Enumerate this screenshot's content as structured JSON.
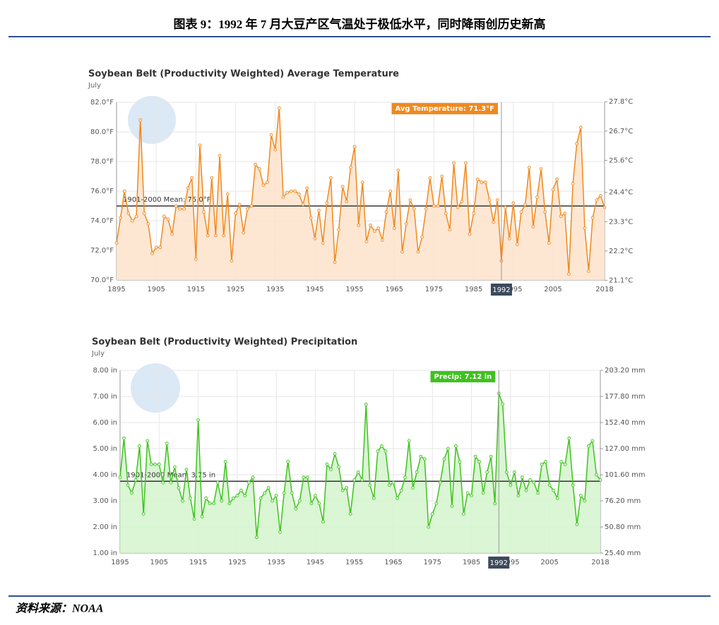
{
  "header": {
    "title": "图表 9：1992 年 7 月大豆产区气温处于极低水平，同时降雨创历史新高"
  },
  "footer": {
    "source": "资料来源：NOAA"
  },
  "chart_data": [
    {
      "type": "line",
      "title": "Soybean Belt (Productivity Weighted) Average Temperature",
      "subtitle": "July",
      "color": "#f0891e",
      "fill": "#fde3cb",
      "x": [
        1895,
        1896,
        1897,
        1898,
        1899,
        1900,
        1901,
        1902,
        1903,
        1904,
        1905,
        1906,
        1907,
        1908,
        1909,
        1910,
        1911,
        1912,
        1913,
        1914,
        1915,
        1916,
        1917,
        1918,
        1919,
        1920,
        1921,
        1922,
        1923,
        1924,
        1925,
        1926,
        1927,
        1928,
        1929,
        1930,
        1931,
        1932,
        1933,
        1934,
        1935,
        1936,
        1937,
        1938,
        1939,
        1940,
        1941,
        1942,
        1943,
        1944,
        1945,
        1946,
        1947,
        1948,
        1949,
        1950,
        1951,
        1952,
        1953,
        1954,
        1955,
        1956,
        1957,
        1958,
        1959,
        1960,
        1961,
        1962,
        1963,
        1964,
        1965,
        1966,
        1967,
        1968,
        1969,
        1970,
        1971,
        1972,
        1973,
        1974,
        1975,
        1976,
        1977,
        1978,
        1979,
        1980,
        1981,
        1982,
        1983,
        1984,
        1985,
        1986,
        1987,
        1988,
        1989,
        1990,
        1991,
        1992,
        1993,
        1994,
        1995,
        1996,
        1997,
        1998,
        1999,
        2000,
        2001,
        2002,
        2003,
        2004,
        2005,
        2006,
        2007,
        2008,
        2009,
        2010,
        2011,
        2012,
        2013,
        2014,
        2015,
        2016,
        2017,
        2018
      ],
      "values": [
        72.5,
        74.2,
        76.0,
        74.5,
        74.0,
        74.3,
        80.8,
        74.5,
        73.8,
        71.8,
        72.2,
        72.2,
        74.3,
        74.1,
        73.1,
        75.0,
        74.8,
        74.8,
        76.2,
        76.9,
        71.4,
        79.1,
        74.6,
        73.0,
        76.9,
        73.0,
        78.4,
        73.0,
        75.8,
        71.3,
        74.5,
        75.1,
        73.2,
        74.8,
        75.0,
        77.8,
        77.5,
        76.4,
        76.6,
        79.8,
        78.8,
        81.6,
        75.6,
        75.9,
        76.0,
        76.0,
        75.8,
        75.1,
        76.2,
        74.2,
        72.8,
        74.7,
        72.5,
        75.2,
        76.9,
        71.2,
        73.4,
        76.3,
        75.3,
        77.6,
        79.0,
        73.7,
        76.6,
        72.6,
        73.7,
        73.3,
        73.5,
        72.7,
        74.6,
        76.0,
        73.5,
        77.4,
        71.9,
        73.8,
        75.4,
        74.8,
        71.9,
        72.9,
        74.8,
        76.9,
        75.0,
        75.0,
        77.0,
        74.5,
        73.4,
        77.9,
        74.9,
        75.3,
        77.9,
        73.1,
        74.5,
        76.8,
        76.6,
        76.6,
        75.4,
        73.9,
        75.4,
        71.3,
        74.9,
        72.8,
        75.2,
        72.4,
        74.6,
        75.1,
        77.6,
        73.6,
        75.6,
        77.5,
        74.6,
        72.5,
        76.1,
        76.8,
        74.3,
        74.5,
        70.4,
        76.5,
        79.2,
        80.3,
        73.5,
        70.6,
        74.2,
        75.4,
        75.7,
        74.9
      ],
      "xlim": [
        1895,
        2018
      ],
      "xticks": [
        1895,
        1905,
        1915,
        1925,
        1935,
        1945,
        1955,
        1965,
        1975,
        1985,
        1995,
        2005,
        2018
      ],
      "ylim": [
        70,
        82
      ],
      "yticks": [
        {
          "value": 70,
          "label": "70.0°F"
        },
        {
          "value": 72,
          "label": "72.0°F"
        },
        {
          "value": 74,
          "label": "74.0°F"
        },
        {
          "value": 76,
          "label": "76.0°F"
        },
        {
          "value": 78,
          "label": "78.0°F"
        },
        {
          "value": 80,
          "label": "80.0°F"
        },
        {
          "value": 82,
          "label": "82.0°F"
        }
      ],
      "y2lim": [
        21.11,
        27.78
      ],
      "y2ticks": [
        {
          "value": 21.1,
          "label": "21.1°C"
        },
        {
          "value": 22.2,
          "label": "22.2°C"
        },
        {
          "value": 23.3,
          "label": "23.3°C"
        },
        {
          "value": 24.4,
          "label": "24.4°C"
        },
        {
          "value": 25.6,
          "label": "25.6°C"
        },
        {
          "value": 26.7,
          "label": "26.7°C"
        },
        {
          "value": 27.8,
          "label": "27.8°C"
        }
      ],
      "grid": true,
      "mean": {
        "value": 75.0,
        "label": "1901-2000 Mean: 75.0°F"
      },
      "highlight": {
        "x": 1992,
        "tooltip": "Avg Temperature: 71.3°F"
      }
    },
    {
      "type": "line",
      "title": "Soybean Belt (Productivity Weighted) Precipitation",
      "subtitle": "July",
      "color": "#3ec21e",
      "fill": "#d3f5cc",
      "x": [
        1895,
        1896,
        1897,
        1898,
        1899,
        1900,
        1901,
        1902,
        1903,
        1904,
        1905,
        1906,
        1907,
        1908,
        1909,
        1910,
        1911,
        1912,
        1913,
        1914,
        1915,
        1916,
        1917,
        1918,
        1919,
        1920,
        1921,
        1922,
        1923,
        1924,
        1925,
        1926,
        1927,
        1928,
        1929,
        1930,
        1931,
        1932,
        1933,
        1934,
        1935,
        1936,
        1937,
        1938,
        1939,
        1940,
        1941,
        1942,
        1943,
        1944,
        1945,
        1946,
        1947,
        1948,
        1949,
        1950,
        1951,
        1952,
        1953,
        1954,
        1955,
        1956,
        1957,
        1958,
        1959,
        1960,
        1961,
        1962,
        1963,
        1964,
        1965,
        1966,
        1967,
        1968,
        1969,
        1970,
        1971,
        1972,
        1973,
        1974,
        1975,
        1976,
        1977,
        1978,
        1979,
        1980,
        1981,
        1982,
        1983,
        1984,
        1985,
        1986,
        1987,
        1988,
        1989,
        1990,
        1991,
        1992,
        1993,
        1994,
        1995,
        1996,
        1997,
        1998,
        1999,
        2000,
        2001,
        2002,
        2003,
        2004,
        2005,
        2006,
        2007,
        2008,
        2009,
        2010,
        2011,
        2012,
        2013,
        2014,
        2015,
        2016,
        2017,
        2018
      ],
      "values": [
        3.9,
        5.4,
        3.6,
        3.3,
        3.8,
        5.1,
        2.5,
        5.3,
        4.4,
        4.4,
        4.4,
        3.7,
        5.2,
        3.7,
        4.3,
        3.5,
        3.0,
        4.2,
        3.1,
        2.3,
        6.1,
        2.4,
        3.1,
        2.9,
        2.9,
        3.7,
        3.0,
        4.5,
        2.9,
        3.1,
        3.2,
        3.4,
        3.2,
        3.7,
        3.9,
        1.6,
        3.1,
        3.3,
        3.5,
        3.0,
        3.2,
        1.8,
        3.3,
        4.5,
        3.3,
        2.7,
        3.0,
        3.9,
        3.9,
        2.9,
        3.2,
        2.9,
        2.2,
        4.4,
        4.2,
        4.8,
        4.3,
        3.4,
        3.5,
        2.5,
        3.8,
        4.1,
        3.8,
        6.7,
        3.6,
        3.1,
        4.9,
        5.1,
        4.9,
        3.6,
        3.7,
        3.1,
        3.4,
        3.9,
        5.3,
        3.5,
        4.1,
        4.7,
        4.6,
        2.0,
        2.5,
        2.9,
        3.7,
        4.6,
        5.0,
        2.8,
        5.1,
        4.5,
        2.5,
        3.3,
        3.2,
        4.7,
        4.5,
        3.3,
        4.1,
        4.7,
        2.9,
        7.12,
        6.7,
        4.1,
        3.6,
        4.1,
        3.2,
        3.9,
        3.4,
        3.8,
        3.7,
        3.3,
        4.4,
        4.5,
        3.6,
        3.4,
        3.1,
        4.5,
        4.4,
        5.4,
        3.6,
        2.1,
        3.2,
        3.0,
        5.1,
        5.3,
        4.0,
        3.8
      ],
      "xlim": [
        1895,
        2018
      ],
      "xticks": [
        1895,
        1905,
        1915,
        1925,
        1935,
        1945,
        1955,
        1965,
        1975,
        1985,
        1995,
        2005,
        2018
      ],
      "ylim": [
        1,
        8
      ],
      "yticks": [
        {
          "value": 1,
          "label": "1.00 in"
        },
        {
          "value": 2,
          "label": "2.00 in"
        },
        {
          "value": 3,
          "label": "3.00 in"
        },
        {
          "value": 4,
          "label": "4.00 in"
        },
        {
          "value": 5,
          "label": "5.00 in"
        },
        {
          "value": 6,
          "label": "6.00 in"
        },
        {
          "value": 7,
          "label": "7.00 in"
        },
        {
          "value": 8,
          "label": "8.00 in"
        }
      ],
      "y2lim": [
        25.4,
        203.2
      ],
      "y2ticks": [
        {
          "value": 25.4,
          "label": "25.40 mm"
        },
        {
          "value": 50.8,
          "label": "50.80 mm"
        },
        {
          "value": 76.2,
          "label": "76.20 mm"
        },
        {
          "value": 101.6,
          "label": "101.60 mm"
        },
        {
          "value": 127,
          "label": "127.00 mm"
        },
        {
          "value": 152.4,
          "label": "152.40 mm"
        },
        {
          "value": 177.8,
          "label": "177.80 mm"
        },
        {
          "value": 203.2,
          "label": "203.20 mm"
        }
      ],
      "grid": true,
      "mean": {
        "value": 3.75,
        "label": "1901-2000 Mean: 3.75 in"
      },
      "highlight": {
        "x": 1992,
        "tooltip": "Precip: 7.12 in"
      }
    }
  ]
}
